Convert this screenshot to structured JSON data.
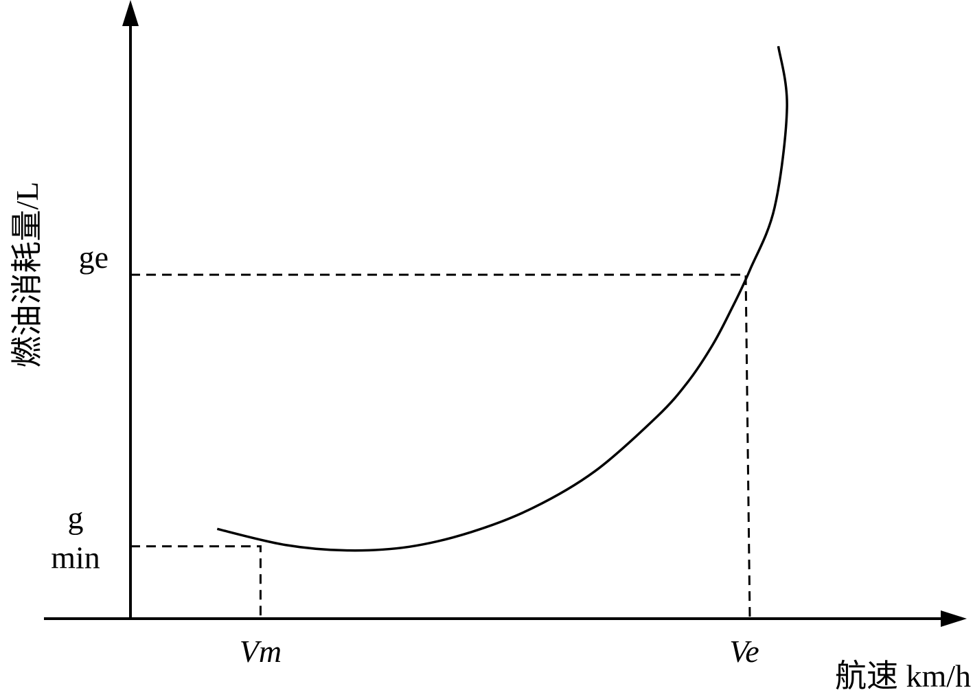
{
  "chart_data": {
    "type": "line",
    "title": "",
    "xlabel": "航速 km/h",
    "ylabel": "燃油消耗量/L",
    "x_ticks": [
      "Vm",
      "Ve"
    ],
    "y_ticks": [
      "g min",
      "ge"
    ],
    "series": [
      {
        "x": [
          0.14,
          0.25,
          0.35,
          0.45,
          0.55,
          0.65,
          0.75,
          0.85,
          0.9,
          0.94,
          0.97,
          1.0,
          1.04,
          1.06,
          1.046
        ],
        "y": [
          0.196,
          0.161,
          0.149,
          0.157,
          0.189,
          0.242,
          0.322,
          0.441,
          0.517,
          0.598,
          0.675,
          0.761,
          0.898,
          1.116,
          1.25
        ]
      }
    ],
    "points": {
      "Vm": {
        "x": 0.21,
        "y": 0.158
      },
      "Ve": {
        "x": 1.0,
        "y": 0.751
      }
    },
    "xlim": [
      -0.14,
      1.32
    ],
    "ylim": [
      0,
      1.38
    ],
    "grid": false,
    "legend": "none"
  }
}
